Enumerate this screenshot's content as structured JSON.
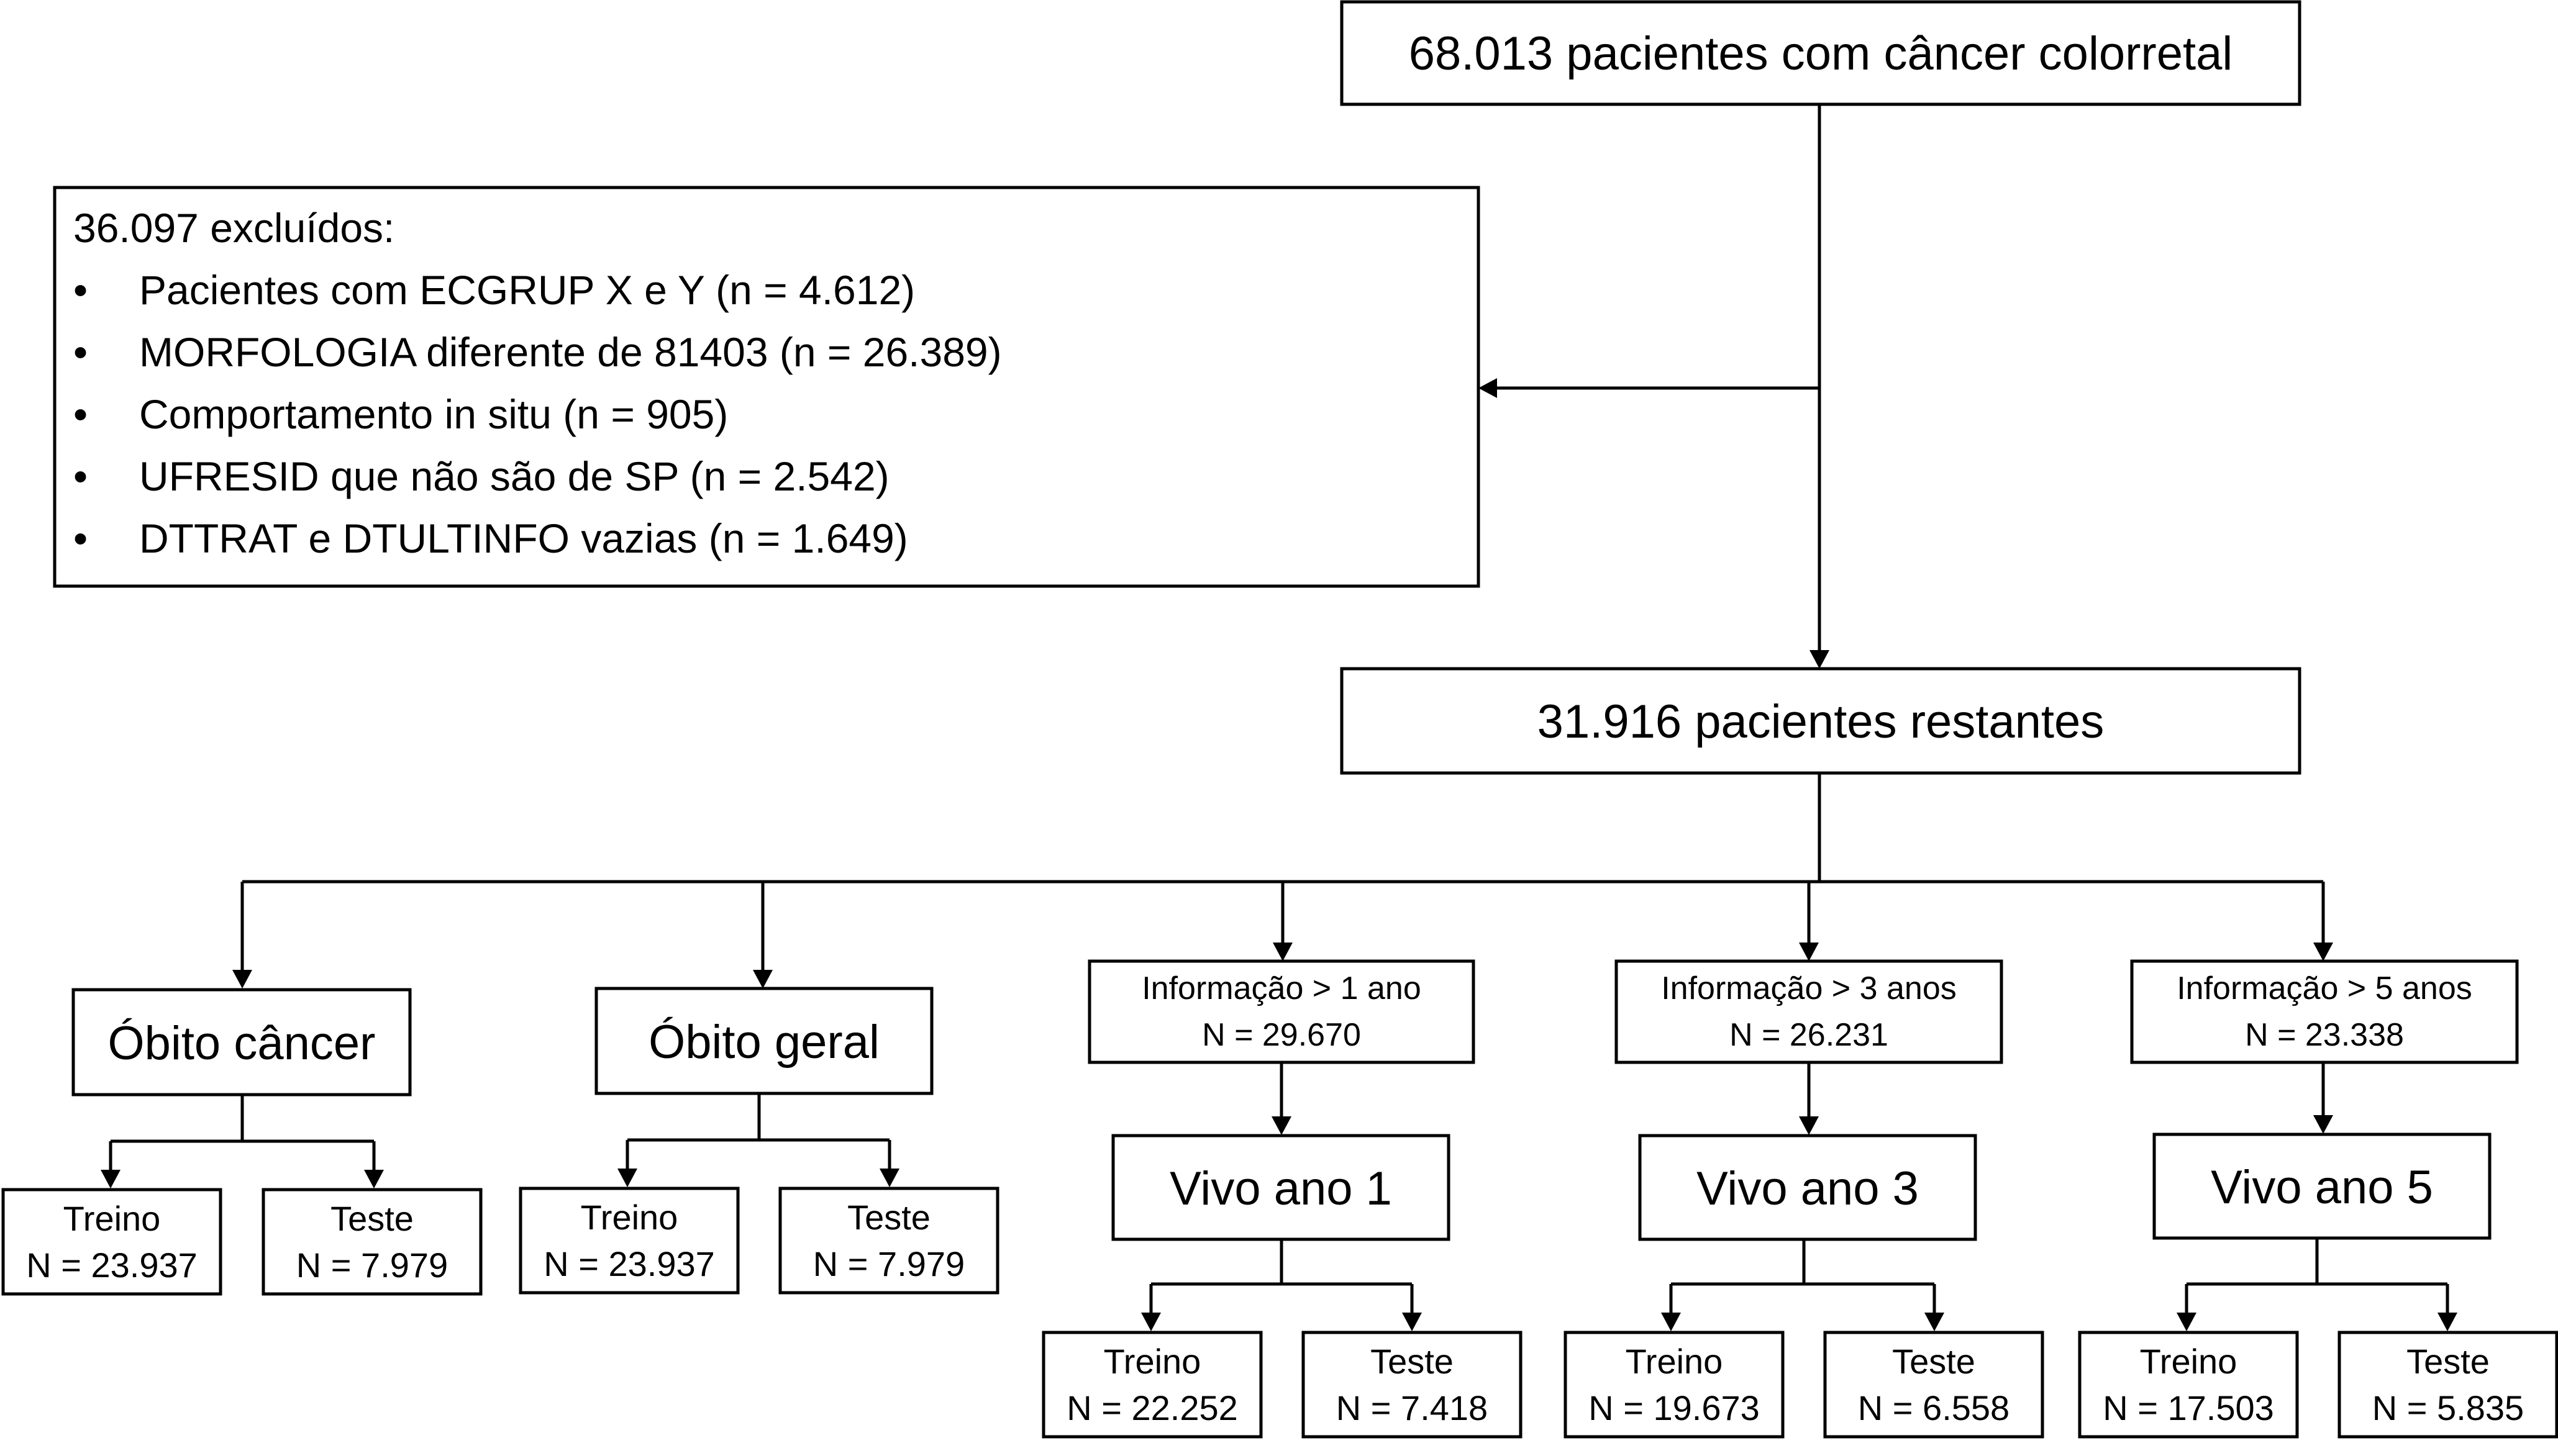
{
  "top": {
    "text": "68.013 pacientes com câncer colorretal"
  },
  "excluded": {
    "title": "36.097 excluídos:",
    "bullet": "•",
    "items": [
      "Pacientes com ECGRUP X e Y (n = 4.612)",
      "MORFOLOGIA diferente de 81403 (n = 26.389)",
      "Comportamento in situ (n = 905)",
      "UFRESID que não são de SP (n = 2.542)",
      "DTTRAT e DTULTINFO vazias (n = 1.649)"
    ]
  },
  "remaining": {
    "text": "31.916 pacientes restantes"
  },
  "obito_cancer": {
    "label": "Óbito câncer",
    "train": {
      "label": "Treino",
      "n": "N = 23.937"
    },
    "test": {
      "label": "Teste",
      "n": "N = 7.979"
    }
  },
  "obito_geral": {
    "label": "Óbito geral",
    "train": {
      "label": "Treino",
      "n": "N = 23.937"
    },
    "test": {
      "label": "Teste",
      "n": "N = 7.979"
    }
  },
  "year1": {
    "info": {
      "label": "Informação > 1 ano",
      "n": "N = 29.670"
    },
    "label": "Vivo ano 1",
    "train": {
      "label": "Treino",
      "n": "N = 22.252"
    },
    "test": {
      "label": "Teste",
      "n": "N = 7.418"
    }
  },
  "year3": {
    "info": {
      "label": "Informação > 3 anos",
      "n": "N = 26.231"
    },
    "label": "Vivo ano 3",
    "train": {
      "label": "Treino",
      "n": "N = 19.673"
    },
    "test": {
      "label": "Teste",
      "n": "N = 6.558"
    }
  },
  "year5": {
    "info": {
      "label": "Informação > 5 anos",
      "n": "N = 23.338"
    },
    "label": "Vivo ano 5",
    "train": {
      "label": "Treino",
      "n": "N = 17.503"
    },
    "test": {
      "label": "Teste",
      "n": "N = 5.835"
    }
  }
}
